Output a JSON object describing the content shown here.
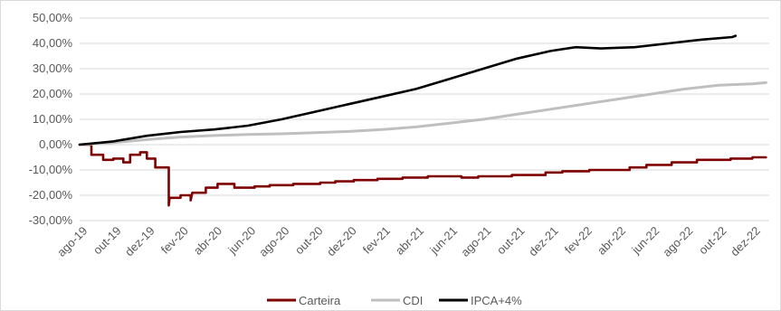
{
  "chart_data": {
    "type": "line",
    "title": "",
    "xlabel": "",
    "ylabel": "",
    "y_tick_labels": [
      "50,00%",
      "40,00%",
      "30,00%",
      "20,00%",
      "10,00%",
      "0,00%",
      "-10,00%",
      "-20,00%",
      "-30,00%"
    ],
    "ylim": [
      -30,
      50
    ],
    "x_tick_labels": [
      "ago-19",
      "out-19",
      "dez-19",
      "fev-20",
      "abr-20",
      "jun-20",
      "ago-20",
      "out-20",
      "dez-20",
      "fev-21",
      "abr-21",
      "jun-21",
      "ago-21",
      "out-21",
      "dez-21",
      "fev-22",
      "abr-22",
      "jun-22",
      "ago-22",
      "out-22",
      "dez-22"
    ],
    "x_range_months": [
      0,
      41
    ],
    "grid": "horizontal",
    "legend_position": "bottom",
    "series": [
      {
        "name": "Carteira",
        "color": "#7f0000",
        "points": [
          [
            0,
            0
          ],
          [
            0.7,
            0
          ],
          [
            0.7,
            -4
          ],
          [
            1.4,
            -4
          ],
          [
            1.4,
            -6
          ],
          [
            2,
            -6
          ],
          [
            2,
            -5.5
          ],
          [
            2.6,
            -5.5
          ],
          [
            2.6,
            -7
          ],
          [
            3,
            -7
          ],
          [
            3,
            -4
          ],
          [
            3.6,
            -4
          ],
          [
            3.6,
            -3
          ],
          [
            4,
            -3
          ],
          [
            4,
            -5.5
          ],
          [
            4.5,
            -5.5
          ],
          [
            4.5,
            -9
          ],
          [
            5.3,
            -9
          ],
          [
            5.3,
            -24
          ],
          [
            5.35,
            -21
          ],
          [
            6,
            -21
          ],
          [
            6,
            -20
          ],
          [
            6.6,
            -20
          ],
          [
            6.6,
            -22
          ],
          [
            6.7,
            -19
          ],
          [
            7.5,
            -19
          ],
          [
            7.5,
            -17
          ],
          [
            8.2,
            -17
          ],
          [
            8.2,
            -15.5
          ],
          [
            9.2,
            -15.5
          ],
          [
            9.2,
            -17
          ],
          [
            10.4,
            -17
          ],
          [
            10.4,
            -16.5
          ],
          [
            11.3,
            -16.5
          ],
          [
            11.3,
            -16
          ],
          [
            12.7,
            -16
          ],
          [
            12.7,
            -15.5
          ],
          [
            14.3,
            -15.5
          ],
          [
            14.3,
            -15
          ],
          [
            15.2,
            -15
          ],
          [
            15.2,
            -14.5
          ],
          [
            16.3,
            -14.5
          ],
          [
            16.3,
            -14
          ],
          [
            17.7,
            -14
          ],
          [
            17.7,
            -13.5
          ],
          [
            19.2,
            -13.5
          ],
          [
            19.2,
            -13
          ],
          [
            20.7,
            -13
          ],
          [
            20.7,
            -12.5
          ],
          [
            22.7,
            -12.5
          ],
          [
            22.7,
            -13
          ],
          [
            23.7,
            -13
          ],
          [
            23.7,
            -12.5
          ],
          [
            25.7,
            -12.5
          ],
          [
            25.7,
            -12
          ],
          [
            27.7,
            -12
          ],
          [
            27.7,
            -11
          ],
          [
            28.7,
            -11
          ],
          [
            28.7,
            -10.5
          ],
          [
            30.3,
            -10.5
          ],
          [
            30.3,
            -10
          ],
          [
            32.7,
            -10
          ],
          [
            32.7,
            -9
          ],
          [
            33.7,
            -9
          ],
          [
            33.7,
            -8
          ],
          [
            35.2,
            -8
          ],
          [
            35.2,
            -7
          ],
          [
            36.7,
            -7
          ],
          [
            36.7,
            -6
          ],
          [
            38.7,
            -6
          ],
          [
            38.7,
            -5.5
          ],
          [
            40,
            -5.5
          ],
          [
            40,
            -5
          ],
          [
            40.8,
            -5
          ]
        ]
      },
      {
        "name": "CDI",
        "color": "#bfbfbf",
        "points": [
          [
            0,
            0
          ],
          [
            2,
            0.8
          ],
          [
            4,
            2
          ],
          [
            6,
            3
          ],
          [
            8,
            3.6
          ],
          [
            10,
            4
          ],
          [
            12,
            4.3
          ],
          [
            14,
            4.7
          ],
          [
            16,
            5.2
          ],
          [
            18,
            6
          ],
          [
            20,
            7
          ],
          [
            22,
            8.5
          ],
          [
            24,
            10
          ],
          [
            26,
            12
          ],
          [
            28,
            14
          ],
          [
            30,
            16
          ],
          [
            32,
            18
          ],
          [
            34,
            20
          ],
          [
            36,
            22
          ],
          [
            38,
            23.5
          ],
          [
            40,
            24
          ],
          [
            40.8,
            24.5
          ]
        ]
      },
      {
        "name": "IPCA+4%",
        "color": "#000000",
        "points": [
          [
            0,
            0
          ],
          [
            2,
            1.3
          ],
          [
            4,
            3.5
          ],
          [
            6,
            5
          ],
          [
            8,
            6
          ],
          [
            10,
            7.5
          ],
          [
            12,
            10
          ],
          [
            14,
            13
          ],
          [
            16,
            16
          ],
          [
            18,
            19
          ],
          [
            20,
            22
          ],
          [
            22,
            26
          ],
          [
            24,
            30
          ],
          [
            26,
            34
          ],
          [
            28,
            37
          ],
          [
            29.5,
            38.5
          ],
          [
            31,
            38
          ],
          [
            33,
            38.5
          ],
          [
            35,
            40
          ],
          [
            37,
            41.5
          ],
          [
            38.8,
            42.5
          ],
          [
            39,
            43
          ]
        ]
      }
    ]
  }
}
